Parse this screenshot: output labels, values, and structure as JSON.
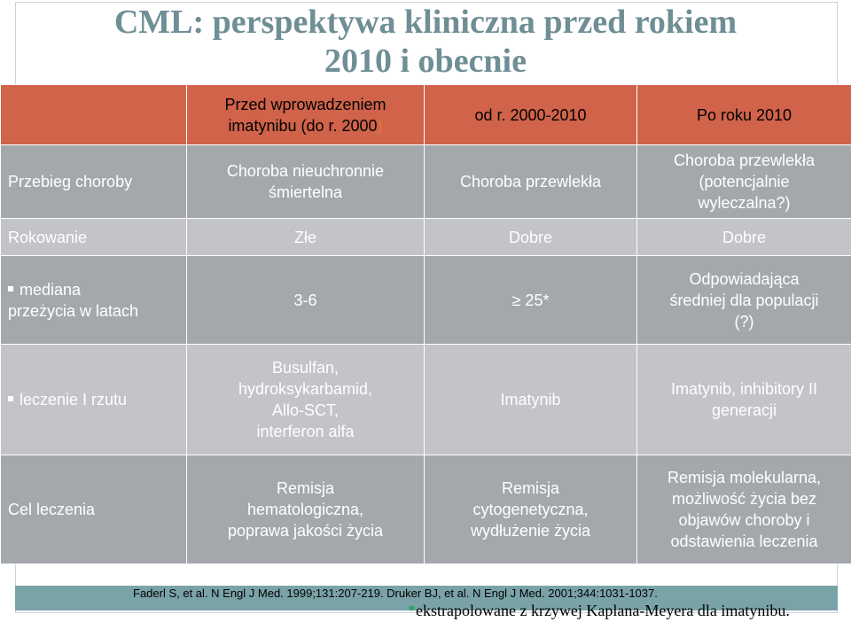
{
  "title": {
    "line1": "CML: perspektywa kliniczna przed rokiem",
    "line2": "2010 i obecnie"
  },
  "table": {
    "header": {
      "col1_line1": "Przed wprowadzeniem",
      "col1_line2": "imatynibu (do r. 2000",
      "col1_paren": ")",
      "col2": "od r. 2000-2010",
      "col3": "Po roku 2010"
    },
    "rows": [
      {
        "label": "Przebieg choroby",
        "c1_lines": [
          "Choroba nieuchronnie",
          "śmiertelna"
        ],
        "c2": "Choroba przewlekła",
        "c3_lines": [
          "Choroba przewlekła",
          "(potencjalnie",
          "wyleczalna?)"
        ]
      },
      {
        "label": "Rokowanie",
        "c1": "Złe",
        "c2": "Dobre",
        "c3": "Dobre"
      },
      {
        "label_lines": [
          "mediana",
          "przeżycia w latach"
        ],
        "c1": "3-6",
        "c2": "≥ 25*",
        "c3_lines": [
          "Odpowiadająca",
          "średniej dla populacji",
          "(?)"
        ]
      },
      {
        "label": "leczenie I rzutu",
        "c1_lines": [
          "Busulfan,",
          "hydroksykarbamid,",
          "Allo-SCT,",
          "interferon alfa"
        ],
        "c2": "Imatynib",
        "c3_lines": [
          "Imatynib, inhibitory II",
          "generacji"
        ]
      },
      {
        "label": "Cel leczenia",
        "c1_lines": [
          "Remisja",
          "hematologiczna,",
          "poprawa jakości życia"
        ],
        "c2_lines": [
          "Remisja",
          "cytogenetyczna,",
          "wydłużenie życia"
        ],
        "c3_lines": [
          "Remisja molekularna,",
          "możliwość życia bez",
          "objawów choroby i",
          "odstawienia leczenia"
        ]
      }
    ]
  },
  "footer": {
    "references": "Faderl S, et al. N Engl J Med. 1999;131:207-219. Druker BJ, et al. N Engl J Med. 2001;344:1031-1037.",
    "note_prefix": "*",
    "note": "ekstrapolowane z krzywej Kaplana-Meyera dla imatynibu."
  },
  "colors": {
    "title": "#6f8e95",
    "header_bg": "#d0634a",
    "row_bg": "#a4a8ad",
    "row_alt_bg": "#c2c4c8",
    "footer_bar": "#7aa3a8"
  }
}
